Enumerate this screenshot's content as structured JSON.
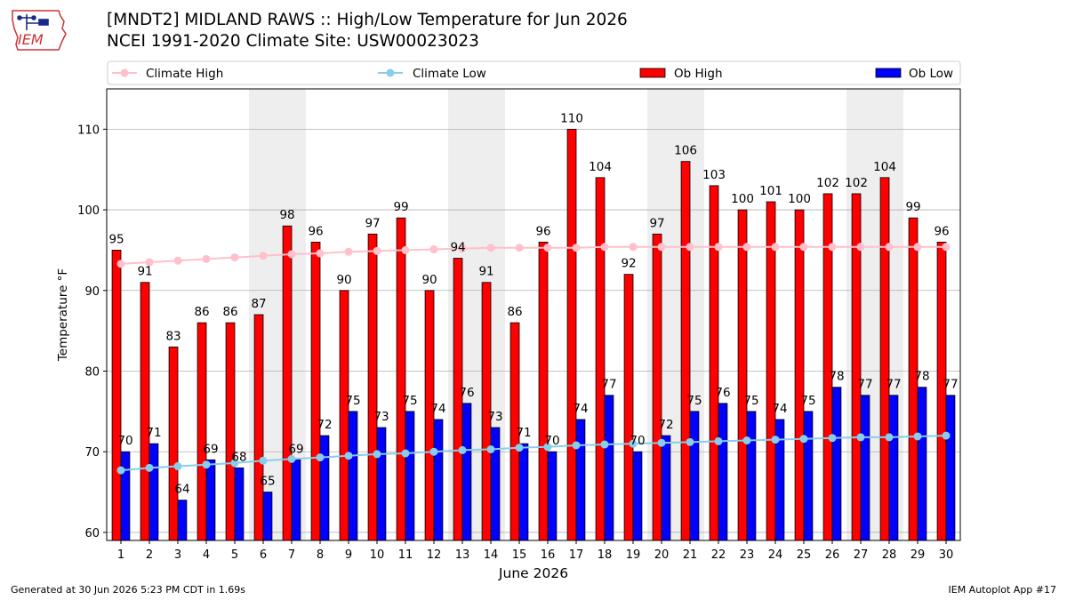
{
  "header": {
    "title_line1": "[MNDT2] MIDLAND RAWS :: High/Low Temperature for Jun 2026",
    "title_line2": "NCEI 1991-2020 Climate Site: USW00023023"
  },
  "logo": {
    "text": "IEM",
    "icon": "iowa-state-outline-icon"
  },
  "footer": {
    "generated": "Generated at 30 Jun 2026 5:23 PM CDT in 1.69s",
    "app": "IEM Autoplot App #17"
  },
  "colors": {
    "ob_high": "#ff0000",
    "ob_low": "#0000ff",
    "climate_high": "#ffc0cb",
    "climate_low": "#87ceeb",
    "weekend_shade": "#eeeeee",
    "grid": "#b0b0b0"
  },
  "chart_data": {
    "type": "bar",
    "xlabel": "June 2026",
    "ylabel": "Temperature °F",
    "ylim": [
      59,
      115
    ],
    "yticks": [
      60,
      70,
      80,
      90,
      100,
      110
    ],
    "grid": "horizontal",
    "legend_placement": "top",
    "categories": [
      "1",
      "2",
      "3",
      "4",
      "5",
      "6",
      "7",
      "8",
      "9",
      "10",
      "11",
      "12",
      "13",
      "14",
      "15",
      "16",
      "17",
      "18",
      "19",
      "20",
      "21",
      "22",
      "23",
      "24",
      "25",
      "26",
      "27",
      "28",
      "29",
      "30"
    ],
    "shaded_weekend_days": [
      [
        6,
        7
      ],
      [
        13,
        14
      ],
      [
        20,
        21
      ],
      [
        27,
        28
      ]
    ],
    "series": [
      {
        "name": "Ob High",
        "kind": "bar",
        "values": [
          95,
          91,
          83,
          86,
          86,
          87,
          98,
          96,
          90,
          97,
          99,
          90,
          94,
          91,
          86,
          96,
          110,
          104,
          92,
          97,
          106,
          103,
          100,
          101,
          100,
          102,
          102,
          104,
          99,
          96
        ]
      },
      {
        "name": "Ob Low",
        "kind": "bar",
        "values": [
          70,
          71,
          64,
          69,
          68,
          65,
          69,
          72,
          75,
          73,
          75,
          74,
          76,
          73,
          71,
          70,
          74,
          77,
          70,
          72,
          75,
          76,
          75,
          74,
          75,
          78,
          77,
          77,
          78,
          77
        ]
      },
      {
        "name": "Climate High",
        "kind": "line",
        "values": [
          93.3,
          93.5,
          93.7,
          93.9,
          94.1,
          94.3,
          94.5,
          94.6,
          94.8,
          94.9,
          95.0,
          95.1,
          95.2,
          95.3,
          95.3,
          95.3,
          95.3,
          95.4,
          95.4,
          95.4,
          95.4,
          95.4,
          95.4,
          95.4,
          95.4,
          95.4,
          95.4,
          95.4,
          95.4,
          95.4
        ]
      },
      {
        "name": "Climate Low",
        "kind": "line",
        "values": [
          67.7,
          68.0,
          68.2,
          68.4,
          68.6,
          68.9,
          69.1,
          69.3,
          69.5,
          69.7,
          69.8,
          70.0,
          70.2,
          70.3,
          70.5,
          70.6,
          70.8,
          70.9,
          71.0,
          71.1,
          71.2,
          71.3,
          71.4,
          71.5,
          71.6,
          71.7,
          71.8,
          71.8,
          71.9,
          72.0
        ]
      }
    ]
  }
}
